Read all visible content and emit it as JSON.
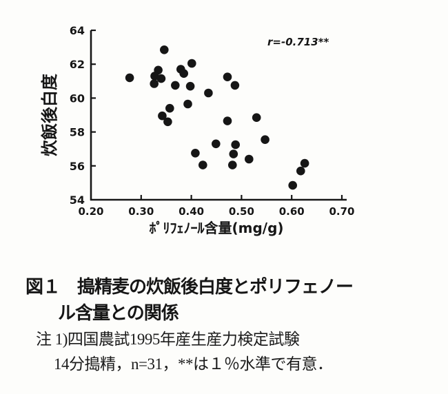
{
  "figure": {
    "background": "#fdfdfb",
    "ink": "#161616"
  },
  "chart_data": {
    "type": "scatter",
    "title": "",
    "xlabel": "ﾎﾟﾘﾌｪﾉｰﾙ含量(mg/g)",
    "ylabel": "炊飯後白度",
    "xlim": [
      0.2,
      0.7
    ],
    "ylim": [
      54,
      64
    ],
    "xticks": [
      0.2,
      0.3,
      0.4,
      0.5,
      0.6,
      0.7
    ],
    "xtick_labels": [
      "0.20",
      "0.30",
      "0.40",
      "0.50",
      "0.60",
      "0.70"
    ],
    "yticks": [
      54,
      56,
      58,
      60,
      62,
      64
    ],
    "ytick_labels": [
      "54",
      "56",
      "58",
      "60",
      "62",
      "64"
    ],
    "annotation": "r=-0.713**",
    "grid": false,
    "legend": "none",
    "marker": {
      "shape": "circle",
      "color": "#161616",
      "radius_px": 6.3
    },
    "n": 31,
    "points": [
      [
        0.277,
        61.2
      ],
      [
        0.346,
        62.85
      ],
      [
        0.334,
        61.65
      ],
      [
        0.327,
        61.3
      ],
      [
        0.34,
        61.15
      ],
      [
        0.326,
        60.85
      ],
      [
        0.379,
        61.7
      ],
      [
        0.385,
        61.45
      ],
      [
        0.401,
        62.05
      ],
      [
        0.368,
        60.75
      ],
      [
        0.398,
        60.7
      ],
      [
        0.434,
        60.3
      ],
      [
        0.393,
        59.65
      ],
      [
        0.472,
        61.25
      ],
      [
        0.487,
        60.75
      ],
      [
        0.357,
        59.4
      ],
      [
        0.342,
        58.95
      ],
      [
        0.353,
        58.6
      ],
      [
        0.472,
        58.65
      ],
      [
        0.53,
        58.85
      ],
      [
        0.449,
        57.3
      ],
      [
        0.488,
        57.25
      ],
      [
        0.547,
        57.55
      ],
      [
        0.408,
        56.75
      ],
      [
        0.484,
        56.7
      ],
      [
        0.423,
        56.05
      ],
      [
        0.482,
        56.05
      ],
      [
        0.515,
        56.4
      ],
      [
        0.626,
        56.15
      ],
      [
        0.618,
        55.7
      ],
      [
        0.602,
        54.85
      ]
    ]
  },
  "caption": {
    "lines": [
      "図１　搗精麦の炊飯後白度とポリフェノー",
      "ル含量との関係"
    ]
  },
  "notes": {
    "lines": [
      "注 1)四国農試1995年産生産力検定試験",
      "14分搗精，n=31，**は１％水準で有意．"
    ]
  }
}
